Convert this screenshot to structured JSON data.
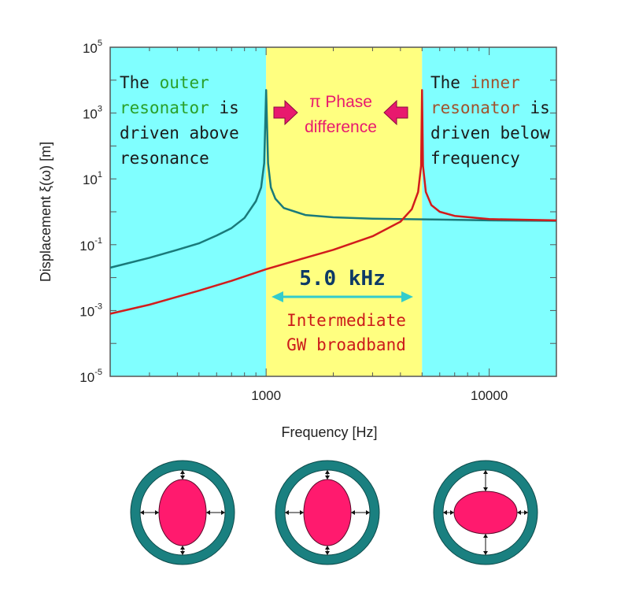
{
  "chart_data": {
    "type": "line",
    "xscale": "log",
    "yscale": "log",
    "xlim": [
      200,
      20000
    ],
    "ylim": [
      1e-05,
      100000
    ],
    "xlabel": "Frequency [Hz]",
    "ylabel": "Displacement  ξ(ω) [m]",
    "x_ticks": [
      {
        "value": 1000,
        "label": "1000"
      },
      {
        "value": 10000,
        "label": "10000"
      }
    ],
    "y_ticks": [
      {
        "value": 1e-05,
        "base": "10",
        "exp": "-5"
      },
      {
        "value": 0.001,
        "base": "10",
        "exp": "-3"
      },
      {
        "value": 0.1,
        "base": "10",
        "exp": "-1"
      },
      {
        "value": 10,
        "base": "10",
        "exp": "1"
      },
      {
        "value": 1000,
        "base": "10",
        "exp": "3"
      },
      {
        "value": 100000,
        "base": "10",
        "exp": "5"
      }
    ],
    "bands": [
      {
        "from": 200,
        "to": 1000,
        "color": "#80ffff"
      },
      {
        "from": 1000,
        "to": 5000,
        "color": "#ffff80"
      },
      {
        "from": 5000,
        "to": 20000,
        "color": "#80ffff"
      }
    ],
    "series": [
      {
        "color": "#1a7a7a",
        "x": [
          200,
          300,
          400,
          500,
          600,
          700,
          800,
          900,
          950,
          980,
          1000,
          1020,
          1050,
          1100,
          1200,
          1500,
          2000,
          3000,
          4000,
          6000,
          10000,
          20000
        ],
        "y": [
          0.02,
          0.04,
          0.07,
          0.11,
          0.19,
          0.32,
          0.65,
          2.1,
          5.5,
          30,
          5000,
          30,
          5.5,
          2.5,
          1.3,
          0.8,
          0.68,
          0.62,
          0.6,
          0.58,
          0.55,
          0.53
        ]
      },
      {
        "color": "#d21c1c",
        "x": [
          200,
          300,
          500,
          700,
          1000,
          1500,
          2000,
          3000,
          4000,
          4500,
          4800,
          4950,
          5000,
          5050,
          5200,
          5500,
          6000,
          7000,
          10000,
          20000
        ],
        "y": [
          0.0008,
          0.0015,
          0.004,
          0.008,
          0.018,
          0.04,
          0.07,
          0.18,
          0.5,
          1.2,
          4,
          25,
          5000,
          25,
          4,
          1.6,
          1.0,
          0.75,
          0.6,
          0.55
        ]
      }
    ],
    "annotations": {
      "left_text": {
        "lines": [
          [
            {
              "t": "The ",
              "c": "#1a1a1a"
            },
            {
              "t": "outer",
              "c": "#2aa02a"
            }
          ],
          [
            {
              "t": "resonator",
              "c": "#2aa02a"
            },
            {
              "t": " is",
              "c": "#1a1a1a"
            }
          ],
          [
            {
              "t": "driven above",
              "c": "#1a1a1a"
            }
          ],
          [
            {
              "t": "resonance",
              "c": "#1a1a1a"
            }
          ]
        ]
      },
      "center_text": {
        "lines": [
          "π Phase",
          "difference"
        ],
        "color": "#e8196e"
      },
      "right_text": {
        "lines": [
          [
            {
              "t": "The ",
              "c": "#1a1a1a"
            },
            {
              "t": "inner",
              "c": "#a0522d"
            }
          ],
          [
            {
              "t": "resonator",
              "c": "#a0522d"
            },
            {
              "t": " is",
              "c": "#1a1a1a"
            }
          ],
          [
            {
              "t": "driven below",
              "c": "#1a1a1a"
            }
          ],
          [
            {
              "t": "frequency",
              "c": "#1a1a1a"
            }
          ]
        ]
      },
      "bandwidth_label": {
        "text": "5.0 kHz",
        "color": "#0d3a66"
      },
      "bandwidth_arrow_color": "#33cccc",
      "band_caption": {
        "lines": [
          "Intermediate",
          "GW broadband"
        ],
        "color": "#cc1a1a"
      },
      "pointer_arrow_color": "#e8196e"
    }
  },
  "resonator_diagrams": [
    {
      "state": "vertically elongated",
      "inner_aspect": 1.3
    },
    {
      "state": "vertically elongated",
      "inner_aspect": 1.25
    },
    {
      "state": "horizontally elongated",
      "inner_aspect": 0.72
    }
  ],
  "colors": {
    "ring": "#1a8080",
    "inner_mass": "#ff1a6e",
    "gap": "#ffffff",
    "arrow": "#111111"
  }
}
